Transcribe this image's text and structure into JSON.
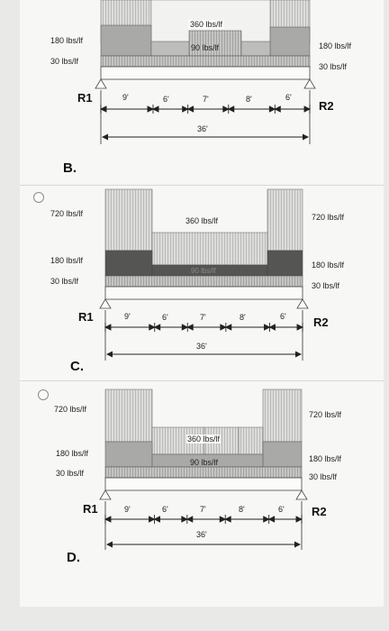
{
  "options": [
    {
      "letter": "",
      "labels": {
        "l1": "180 lbs/lf",
        "l2": "30 lbs/lf",
        "top1": "360 lbs/lf",
        "top2": "90 lbs/lf",
        "r1": "180 lbs/lf",
        "r2": "30 lbs/lf"
      },
      "r1": "R1",
      "r2": "R2",
      "dims": [
        "9'",
        "6'",
        "7'",
        "8'",
        "6'"
      ],
      "total": "36'"
    },
    {
      "letter": "B.",
      "labels": {
        "l1": "720 lbs/lf",
        "l2": "180 lbs/lf",
        "l3": "30 lbs/lf",
        "mid1": "360 lbs/lf",
        "mid2": "90 lbs/lf",
        "r1": "720 lbs/lf",
        "r2": "180 lbs/lf",
        "r3": "30 lbs/lf"
      },
      "r1": "R1",
      "r2": "R2",
      "dims": [
        "9'",
        "6'",
        "7'",
        "8'",
        "6'"
      ],
      "total": "36'"
    },
    {
      "letter": "C.",
      "labels": {
        "l1": "720 lbs/lf",
        "l2": "180 lbs/lf",
        "l3": "30 lbs/lf",
        "mid1": "360 lbs/lf",
        "mid2": "90 lbs/lf",
        "r1": "720 lbs/lf",
        "r2": "180 lbs/lf",
        "r3": "30 lbs/lf"
      },
      "r1": "R1",
      "r2": "R2",
      "dims": [
        "9'",
        "6'",
        "7'",
        "8'",
        "6'"
      ],
      "total": "36'"
    }
  ],
  "final_letter": "D."
}
